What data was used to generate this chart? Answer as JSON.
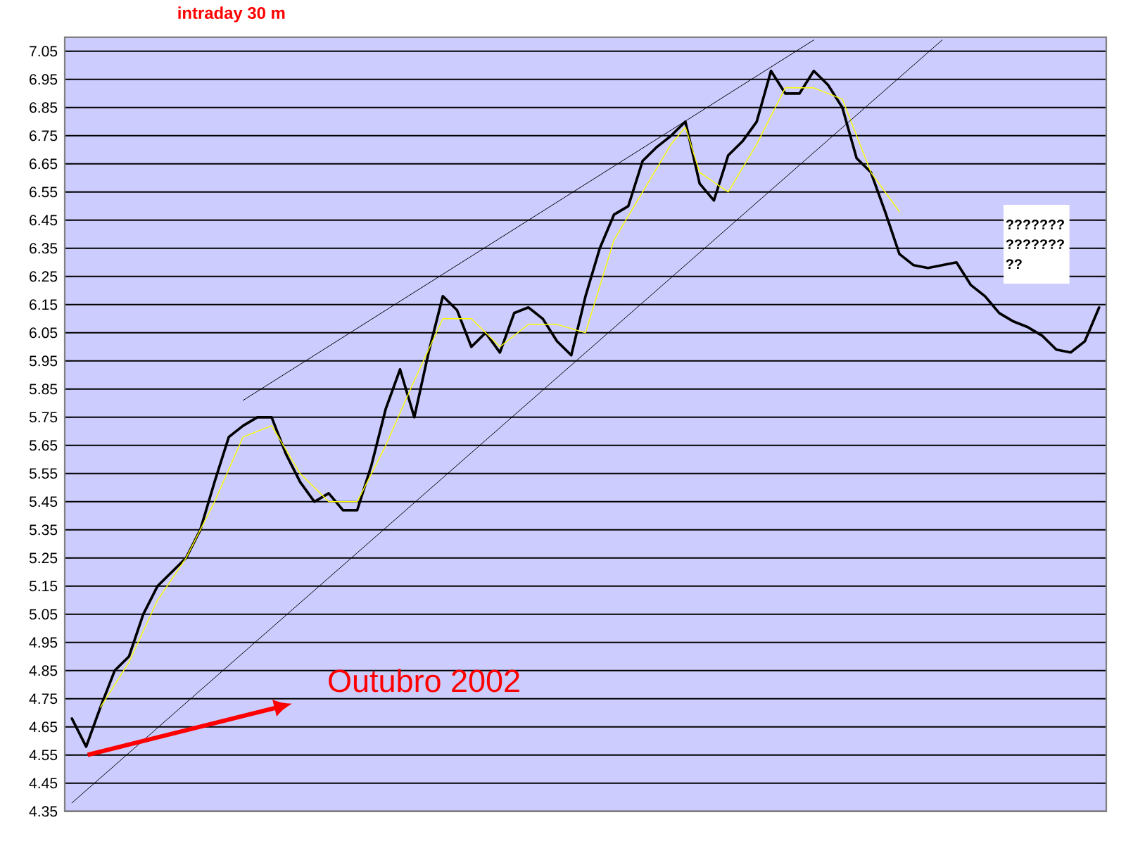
{
  "chart_data": {
    "type": "line",
    "title": "intraday 30 m",
    "categories": [
      null,
      null,
      null,
      null,
      null,
      null,
      null,
      null,
      null,
      null,
      null,
      null,
      null,
      null,
      null,
      null,
      null,
      null,
      null,
      null,
      null,
      null,
      null,
      null,
      null,
      null,
      null,
      null,
      null,
      null,
      null,
      null,
      null,
      null,
      null,
      null,
      null,
      null,
      null,
      null,
      null,
      null,
      null,
      null,
      null,
      null,
      null,
      null,
      null,
      null,
      null,
      null,
      null,
      null,
      null,
      null,
      null,
      null,
      null,
      null,
      null,
      null,
      null,
      null,
      null,
      null,
      null,
      null,
      null,
      null,
      null,
      null,
      null
    ],
    "series": [
      {
        "color": "#000000",
        "values": [
          4.68,
          4.58,
          4.72,
          4.85,
          4.9,
          5.05,
          5.15,
          5.2,
          5.25,
          5.35,
          5.52,
          5.68,
          5.72,
          5.75,
          5.75,
          5.62,
          5.52,
          5.45,
          5.48,
          5.42,
          5.42,
          5.58,
          5.78,
          5.92,
          5.75,
          5.98,
          6.18,
          6.13,
          6.0,
          6.05,
          5.98,
          6.12,
          6.14,
          6.1,
          6.02,
          5.97,
          6.18,
          6.35,
          6.47,
          6.5,
          6.66,
          6.71,
          6.75,
          6.8,
          6.58,
          6.52,
          6.68,
          6.73,
          6.8,
          6.98,
          6.9,
          6.9,
          6.98,
          6.93,
          6.85,
          6.67,
          6.62,
          6.48,
          6.33,
          6.29,
          6.28,
          6.29,
          6.3,
          6.22,
          6.18,
          6.12,
          6.09,
          6.07,
          6.04,
          5.99,
          5.98,
          6.02,
          6.14
        ]
      },
      {
        "color": "#ffff00",
        "values": [
          null,
          null,
          4.72,
          null,
          4.88,
          null,
          5.1,
          null,
          5.25,
          null,
          5.45,
          null,
          5.68,
          null,
          5.72,
          null,
          5.55,
          null,
          5.45,
          null,
          5.45,
          null,
          5.65,
          null,
          5.88,
          null,
          6.1,
          null,
          6.1,
          null,
          6.0,
          null,
          6.08,
          null,
          6.08,
          null,
          6.05,
          null,
          6.38,
          null,
          6.55,
          null,
          6.72,
          6.78,
          6.62,
          null,
          6.55,
          null,
          6.72,
          null,
          6.92,
          null,
          6.92,
          null,
          6.88,
          null,
          6.62,
          null,
          6.48,
          null,
          null,
          null,
          null,
          null,
          null,
          null,
          null,
          null,
          null,
          null,
          null,
          null,
          null
        ]
      },
      {
        "color": "#000000",
        "values": [
          null,
          null,
          null,
          null,
          null,
          null,
          null,
          null,
          null,
          null,
          null,
          null,
          5.81,
          null,
          null,
          null,
          null,
          null,
          null,
          null,
          null,
          null,
          null,
          null,
          null,
          null,
          null,
          null,
          null,
          null,
          null,
          null,
          null,
          null,
          null,
          null,
          null,
          null,
          null,
          null,
          null,
          null,
          null,
          null,
          null,
          null,
          null,
          null,
          null,
          null,
          null,
          null,
          7.09,
          null,
          null,
          null,
          null,
          null,
          null,
          null,
          null,
          null,
          null,
          null,
          null,
          null,
          null,
          null,
          null,
          null,
          null,
          null,
          null
        ]
      },
      {
        "color": "#000000",
        "values": [
          4.38,
          null,
          null,
          null,
          null,
          null,
          null,
          null,
          null,
          null,
          null,
          null,
          null,
          null,
          null,
          null,
          null,
          null,
          null,
          null,
          null,
          null,
          null,
          null,
          null,
          null,
          null,
          null,
          null,
          null,
          null,
          null,
          null,
          null,
          null,
          null,
          null,
          null,
          null,
          null,
          null,
          null,
          null,
          null,
          null,
          null,
          null,
          null,
          null,
          null,
          null,
          null,
          null,
          null,
          null,
          null,
          null,
          null,
          null,
          null,
          null,
          7.09,
          null,
          null,
          null,
          null,
          null,
          null,
          null,
          null,
          null,
          null,
          null
        ]
      }
    ],
    "ylim": [
      4.35,
      7.1
    ],
    "yticks": [
      4.35,
      4.45,
      4.55,
      4.65,
      4.75,
      4.85,
      4.95,
      5.05,
      5.15,
      5.25,
      5.35,
      5.45,
      5.55,
      5.65,
      5.75,
      5.85,
      5.95,
      6.05,
      6.15,
      6.25,
      6.35,
      6.45,
      6.55,
      6.65,
      6.75,
      6.85,
      6.95,
      7.05
    ],
    "tick_labels": "y",
    "grid": "y",
    "annotations": [
      "Outubro 2002",
      "??????? ??????? ??"
    ]
  }
}
